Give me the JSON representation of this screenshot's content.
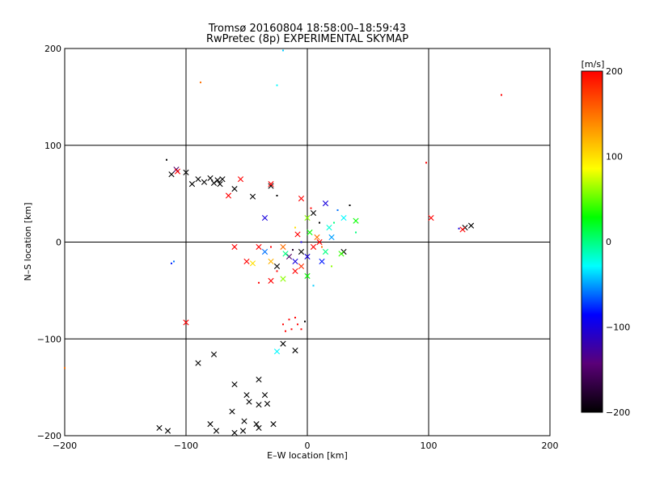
{
  "chart_data": {
    "type": "scatter",
    "title": "Tromsø 20160804  18:58:00–18:59:43",
    "subtitle": "RwPretec (8p) EXPERIMENTAL SKYMAP",
    "xlabel": "E–W location [km]",
    "ylabel": "N–S location [km]",
    "xlim": [
      -200,
      200
    ],
    "ylim": [
      -200,
      200
    ],
    "xticks": [
      -200,
      -100,
      0,
      100,
      200
    ],
    "yticks": [
      -200,
      -100,
      0,
      100,
      200
    ],
    "grid": true,
    "colorbar": {
      "label": "[m/s]",
      "range": [
        -200,
        200
      ],
      "ticks": [
        200,
        100,
        0,
        -100,
        -200
      ],
      "colors": [
        "#000000",
        "#5a0078",
        "#0000ff",
        "#00ffff",
        "#00ff00",
        "#ffff00",
        "#ff8000",
        "#ff0000"
      ]
    },
    "marker_legend": "x = cross, • = dot (velocity in m/s)",
    "points": [
      {
        "x": -90,
        "y": 65,
        "v": -200,
        "m": "x"
      },
      {
        "x": -85,
        "y": 62,
        "v": -200,
        "m": "x"
      },
      {
        "x": -80,
        "y": 66,
        "v": -200,
        "m": "x"
      },
      {
        "x": -77,
        "y": 61,
        "v": -200,
        "m": "x"
      },
      {
        "x": -74,
        "y": 64,
        "v": -200,
        "m": "x"
      },
      {
        "x": -72,
        "y": 60,
        "v": -200,
        "m": "x"
      },
      {
        "x": -70,
        "y": 65,
        "v": -200,
        "m": "x"
      },
      {
        "x": -95,
        "y": 60,
        "v": -200,
        "m": "x"
      },
      {
        "x": -100,
        "y": 72,
        "v": -200,
        "m": "x"
      },
      {
        "x": -112,
        "y": 70,
        "v": -200,
        "m": "x"
      },
      {
        "x": -108,
        "y": 75,
        "v": -150,
        "m": "x"
      },
      {
        "x": -116,
        "y": 85,
        "v": -200,
        "m": "."
      },
      {
        "x": -60,
        "y": 55,
        "v": -200,
        "m": "x"
      },
      {
        "x": -45,
        "y": 47,
        "v": -200,
        "m": "x"
      },
      {
        "x": -30,
        "y": 58,
        "v": -200,
        "m": "x"
      },
      {
        "x": -25,
        "y": 48,
        "v": -200,
        "m": "."
      },
      {
        "x": -55,
        "y": 65,
        "v": 200,
        "m": "x"
      },
      {
        "x": -107,
        "y": 73,
        "v": 200,
        "m": "x"
      },
      {
        "x": -30,
        "y": 60,
        "v": 200,
        "m": "x"
      },
      {
        "x": -65,
        "y": 48,
        "v": 200,
        "m": "x"
      },
      {
        "x": -35,
        "y": 25,
        "v": -100,
        "m": "x"
      },
      {
        "x": -5,
        "y": 45,
        "v": 200,
        "m": "x"
      },
      {
        "x": 5,
        "y": 30,
        "v": -200,
        "m": "x"
      },
      {
        "x": 15,
        "y": 40,
        "v": -100,
        "m": "x"
      },
      {
        "x": 30,
        "y": 25,
        "v": -30,
        "m": "x"
      },
      {
        "x": 40,
        "y": 22,
        "v": 30,
        "m": "x"
      },
      {
        "x": 25,
        "y": 33,
        "v": -60,
        "m": "."
      },
      {
        "x": 35,
        "y": 38,
        "v": -200,
        "m": "."
      },
      {
        "x": -60,
        "y": -5,
        "v": 200,
        "m": "x"
      },
      {
        "x": -40,
        "y": -5,
        "v": 200,
        "m": "x"
      },
      {
        "x": -50,
        "y": -20,
        "v": 200,
        "m": "x"
      },
      {
        "x": -45,
        "y": -22,
        "v": 100,
        "m": "x"
      },
      {
        "x": -20,
        "y": -5,
        "v": 150,
        "m": "x"
      },
      {
        "x": -15,
        "y": -15,
        "v": -150,
        "m": "x"
      },
      {
        "x": -10,
        "y": -20,
        "v": -100,
        "m": "x"
      },
      {
        "x": -5,
        "y": -10,
        "v": -200,
        "m": "x"
      },
      {
        "x": 0,
        "y": -15,
        "v": -100,
        "m": "x"
      },
      {
        "x": 5,
        "y": -5,
        "v": 200,
        "m": "x"
      },
      {
        "x": 10,
        "y": 0,
        "v": 200,
        "m": "x"
      },
      {
        "x": 8,
        "y": 5,
        "v": 150,
        "m": "x"
      },
      {
        "x": 15,
        "y": -10,
        "v": 0,
        "m": "x"
      },
      {
        "x": -10,
        "y": -30,
        "v": 200,
        "m": "x"
      },
      {
        "x": -25,
        "y": -25,
        "v": -200,
        "m": "x"
      },
      {
        "x": 20,
        "y": 5,
        "v": -50,
        "m": "x"
      },
      {
        "x": 30,
        "y": -10,
        "v": -200,
        "m": "x"
      },
      {
        "x": 28,
        "y": -12,
        "v": 40,
        "m": "x"
      },
      {
        "x": -30,
        "y": -40,
        "v": 200,
        "m": "x"
      },
      {
        "x": -20,
        "y": -38,
        "v": 60,
        "m": "x"
      },
      {
        "x": 0,
        "y": -35,
        "v": 30,
        "m": "x"
      },
      {
        "x": 12,
        "y": -20,
        "v": -80,
        "m": "x"
      },
      {
        "x": -35,
        "y": -10,
        "v": -60,
        "m": "x"
      },
      {
        "x": -18,
        "y": -12,
        "v": 0,
        "m": "x"
      },
      {
        "x": -5,
        "y": -25,
        "v": 180,
        "m": "x"
      },
      {
        "x": 2,
        "y": 10,
        "v": 30,
        "m": "x"
      },
      {
        "x": 18,
        "y": 15,
        "v": -20,
        "m": "x"
      },
      {
        "x": -8,
        "y": 8,
        "v": 200,
        "m": "x"
      },
      {
        "x": 0,
        "y": 25,
        "v": 60,
        "m": "x"
      },
      {
        "x": -30,
        "y": -5,
        "v": 200,
        "m": "."
      },
      {
        "x": -25,
        "y": -30,
        "v": 200,
        "m": "."
      },
      {
        "x": -40,
        "y": -42,
        "v": 200,
        "m": "."
      },
      {
        "x": 5,
        "y": -45,
        "v": -40,
        "m": "."
      },
      {
        "x": 20,
        "y": -25,
        "v": 60,
        "m": "."
      },
      {
        "x": -10,
        "y": 15,
        "v": 100,
        "m": "."
      },
      {
        "x": 22,
        "y": 20,
        "v": 0,
        "m": "."
      },
      {
        "x": 10,
        "y": 20,
        "v": -200,
        "m": "."
      },
      {
        "x": -5,
        "y": 0,
        "v": -100,
        "m": "."
      },
      {
        "x": 12,
        "y": -5,
        "v": 150,
        "m": "."
      },
      {
        "x": -12,
        "y": -8,
        "v": -180,
        "m": "."
      },
      {
        "x": 3,
        "y": 35,
        "v": 200,
        "m": "."
      },
      {
        "x": 40,
        "y": 10,
        "v": 0,
        "m": "."
      },
      {
        "x": -15,
        "y": -80,
        "v": 200,
        "m": "."
      },
      {
        "x": -10,
        "y": -78,
        "v": 200,
        "m": "."
      },
      {
        "x": -8,
        "y": -85,
        "v": 200,
        "m": "."
      },
      {
        "x": -13,
        "y": -90,
        "v": 200,
        "m": "."
      },
      {
        "x": -20,
        "y": -85,
        "v": 200,
        "m": "."
      },
      {
        "x": -18,
        "y": -92,
        "v": 200,
        "m": "."
      },
      {
        "x": -5,
        "y": -90,
        "v": 200,
        "m": "."
      },
      {
        "x": -2,
        "y": -82,
        "v": -200,
        "m": "."
      },
      {
        "x": -100,
        "y": -83,
        "v": 200,
        "m": "x"
      },
      {
        "x": -20,
        "y": -105,
        "v": -200,
        "m": "x"
      },
      {
        "x": -25,
        "y": -113,
        "v": -30,
        "m": "x"
      },
      {
        "x": -10,
        "y": -112,
        "v": -200,
        "m": "x"
      },
      {
        "x": -90,
        "y": -125,
        "v": -200,
        "m": "x"
      },
      {
        "x": -77,
        "y": -116,
        "v": -200,
        "m": "x"
      },
      {
        "x": -60,
        "y": -147,
        "v": -200,
        "m": "x"
      },
      {
        "x": -40,
        "y": -142,
        "v": -200,
        "m": "x"
      },
      {
        "x": -50,
        "y": -158,
        "v": -200,
        "m": "x"
      },
      {
        "x": -35,
        "y": -158,
        "v": -200,
        "m": "x"
      },
      {
        "x": -48,
        "y": -165,
        "v": -200,
        "m": "x"
      },
      {
        "x": -40,
        "y": -168,
        "v": -200,
        "m": "x"
      },
      {
        "x": -33,
        "y": -167,
        "v": -200,
        "m": "x"
      },
      {
        "x": -62,
        "y": -175,
        "v": -200,
        "m": "x"
      },
      {
        "x": -52,
        "y": -185,
        "v": -200,
        "m": "x"
      },
      {
        "x": -42,
        "y": -188,
        "v": -200,
        "m": "x"
      },
      {
        "x": -28,
        "y": -188,
        "v": -200,
        "m": "x"
      },
      {
        "x": -80,
        "y": -188,
        "v": -200,
        "m": "x"
      },
      {
        "x": -75,
        "y": -195,
        "v": -200,
        "m": "x"
      },
      {
        "x": -60,
        "y": -197,
        "v": -200,
        "m": "x"
      },
      {
        "x": -53,
        "y": -195,
        "v": -200,
        "m": "x"
      },
      {
        "x": -40,
        "y": -192,
        "v": -200,
        "m": "x"
      },
      {
        "x": -115,
        "y": -195,
        "v": -200,
        "m": "x"
      },
      {
        "x": -122,
        "y": -192,
        "v": -200,
        "m": "x"
      },
      {
        "x": -200,
        "y": -130,
        "v": 150,
        "m": "."
      },
      {
        "x": -112,
        "y": -22,
        "v": -80,
        "m": "."
      },
      {
        "x": -110,
        "y": -20,
        "v": -60,
        "m": "."
      },
      {
        "x": 98,
        "y": 82,
        "v": 200,
        "m": "."
      },
      {
        "x": 102,
        "y": 25,
        "v": 200,
        "m": "x"
      },
      {
        "x": 130,
        "y": 15,
        "v": -200,
        "m": "x"
      },
      {
        "x": 135,
        "y": 17,
        "v": -200,
        "m": "x"
      },
      {
        "x": 128,
        "y": 13,
        "v": 200,
        "m": "x"
      },
      {
        "x": 125,
        "y": 14,
        "v": -100,
        "m": "."
      },
      {
        "x": 160,
        "y": 152,
        "v": 200,
        "m": "."
      },
      {
        "x": -88,
        "y": 165,
        "v": 150,
        "m": "."
      },
      {
        "x": -25,
        "y": 162,
        "v": -30,
        "m": "."
      },
      {
        "x": -20,
        "y": 198,
        "v": -40,
        "m": "."
      },
      {
        "x": -30,
        "y": -20,
        "v": 120,
        "m": "x"
      }
    ]
  }
}
